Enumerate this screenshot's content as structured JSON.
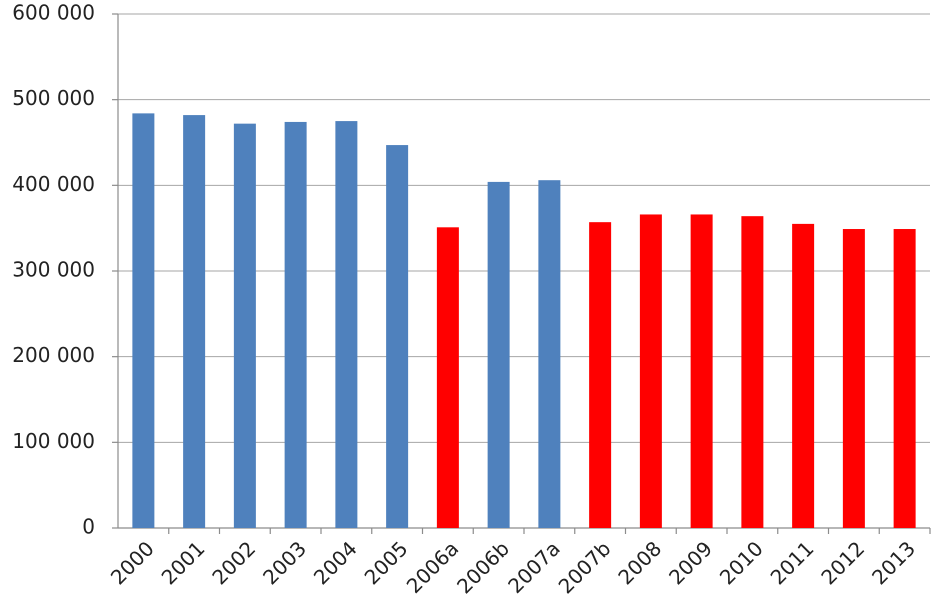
{
  "chart_data": {
    "type": "bar",
    "categories": [
      "2000",
      "2001",
      "2002",
      "2003",
      "2004",
      "2005",
      "2006a",
      "2006b",
      "2007a",
      "2007b",
      "2008",
      "2009",
      "2010",
      "2011",
      "2012",
      "2013"
    ],
    "values": [
      484000,
      482000,
      472000,
      474000,
      475000,
      447000,
      351000,
      404000,
      406000,
      357000,
      366000,
      366000,
      364000,
      355000,
      349000,
      349000
    ],
    "colors": [
      "#4f81bd",
      "#4f81bd",
      "#4f81bd",
      "#4f81bd",
      "#4f81bd",
      "#4f81bd",
      "#ff0000",
      "#4f81bd",
      "#4f81bd",
      "#ff0000",
      "#ff0000",
      "#ff0000",
      "#ff0000",
      "#ff0000",
      "#ff0000",
      "#ff0000"
    ],
    "ylim": [
      0,
      600000
    ],
    "yticks": [
      0,
      {
        "value": 100000,
        "label": "100 000"
      },
      {
        "value": 200000,
        "label": "200 000"
      },
      {
        "value": 300000,
        "label": "300 000"
      },
      {
        "value": 400000,
        "label": "400 000"
      },
      {
        "value": 500000,
        "label": "500 000"
      },
      {
        "value": 600000,
        "label": "600 000"
      }
    ],
    "grid": true
  }
}
